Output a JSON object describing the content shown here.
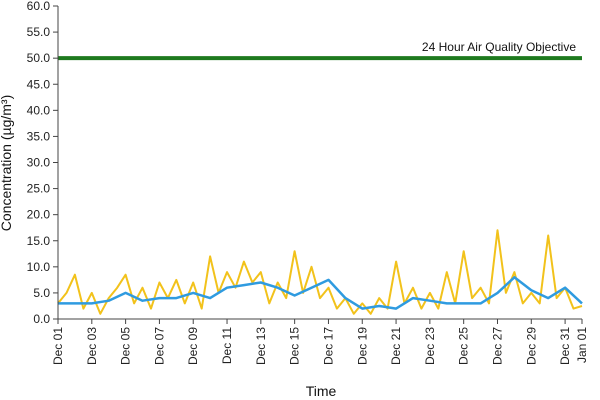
{
  "chart_data": {
    "type": "line",
    "title": "",
    "xlabel": "Time",
    "ylabel": "Concentration (µg/m³)",
    "ylim": [
      0,
      60
    ],
    "yticks": [
      "0.0",
      "5.0",
      "10.0",
      "15.0",
      "20.0",
      "25.0",
      "30.0",
      "35.0",
      "40.0",
      "45.0",
      "50.0",
      "55.0",
      "60.0"
    ],
    "xlim": [
      "Dec 01",
      "Jan 01"
    ],
    "xtick_labels": [
      "Dec 01",
      "Dec 03",
      "Dec 05",
      "Dec 07",
      "Dec 09",
      "Dec 11",
      "Dec 13",
      "Dec 15",
      "Dec 17",
      "Dec 19",
      "Dec 21",
      "Dec 23",
      "Dec 25",
      "Dec 27",
      "Dec 29",
      "Dec 31",
      "Jan 01"
    ],
    "xtick_days": [
      0,
      2,
      4,
      6,
      8,
      10,
      12,
      14,
      16,
      18,
      20,
      22,
      24,
      26,
      28,
      30,
      31
    ],
    "grid": false,
    "reference_line": {
      "label": "24 Hour Air Quality Objective",
      "value": 50,
      "color": "#1e7a1e"
    },
    "series": [
      {
        "color": "#f2c21b",
        "x": [
          "Dec 01",
          "Dec 01",
          "Dec 02",
          "Dec 02",
          "Dec 03",
          "Dec 03",
          "Dec 04",
          "Dec 04",
          "Dec 05",
          "Dec 05",
          "Dec 06",
          "Dec 06",
          "Dec 07",
          "Dec 07",
          "Dec 08",
          "Dec 08",
          "Dec 09",
          "Dec 09",
          "Dec 10",
          "Dec 10",
          "Dec 11",
          "Dec 11",
          "Dec 12",
          "Dec 12",
          "Dec 13",
          "Dec 13",
          "Dec 14",
          "Dec 14",
          "Dec 15",
          "Dec 15",
          "Dec 16",
          "Dec 16",
          "Dec 17",
          "Dec 17",
          "Dec 18",
          "Dec 18",
          "Dec 19",
          "Dec 19",
          "Dec 20",
          "Dec 20",
          "Dec 21",
          "Dec 21",
          "Dec 22",
          "Dec 22",
          "Dec 23",
          "Dec 23",
          "Dec 24",
          "Dec 24",
          "Dec 25",
          "Dec 25",
          "Dec 26",
          "Dec 26",
          "Dec 27",
          "Dec 27",
          "Dec 28",
          "Dec 28",
          "Dec 29",
          "Dec 29",
          "Dec 30",
          "Dec 30",
          "Dec 31",
          "Dec 31",
          "Jan 01"
        ],
        "y": [
          3,
          5,
          8.5,
          2,
          5,
          1,
          4,
          6,
          8.5,
          3,
          6,
          2,
          7,
          4,
          7.5,
          3,
          7,
          2,
          12,
          5,
          9,
          6,
          11,
          7,
          9,
          3,
          7,
          4,
          13,
          5,
          10,
          4,
          6,
          2,
          4,
          1,
          3,
          1,
          4,
          2,
          11,
          3,
          6,
          2,
          5,
          2,
          9,
          3,
          13,
          4,
          6,
          3,
          17,
          5,
          9,
          3,
          5,
          3,
          16,
          4,
          6,
          2,
          2.5
        ]
      },
      {
        "color": "#2f9be0",
        "x": [
          "Dec 01",
          "Dec 02",
          "Dec 03",
          "Dec 04",
          "Dec 05",
          "Dec 06",
          "Dec 07",
          "Dec 08",
          "Dec 09",
          "Dec 10",
          "Dec 11",
          "Dec 12",
          "Dec 13",
          "Dec 14",
          "Dec 15",
          "Dec 16",
          "Dec 17",
          "Dec 18",
          "Dec 19",
          "Dec 20",
          "Dec 21",
          "Dec 22",
          "Dec 23",
          "Dec 24",
          "Dec 25",
          "Dec 26",
          "Dec 27",
          "Dec 28",
          "Dec 29",
          "Dec 30",
          "Dec 31",
          "Jan 01"
        ],
        "y": [
          3,
          3,
          3,
          3.5,
          5,
          3.5,
          4,
          4,
          5,
          4,
          6,
          6.5,
          7,
          6,
          4.5,
          6,
          7.5,
          4,
          2,
          2.5,
          2,
          4,
          3.5,
          3,
          3,
          3,
          5,
          8,
          5.5,
          4,
          6,
          3
        ]
      }
    ]
  }
}
